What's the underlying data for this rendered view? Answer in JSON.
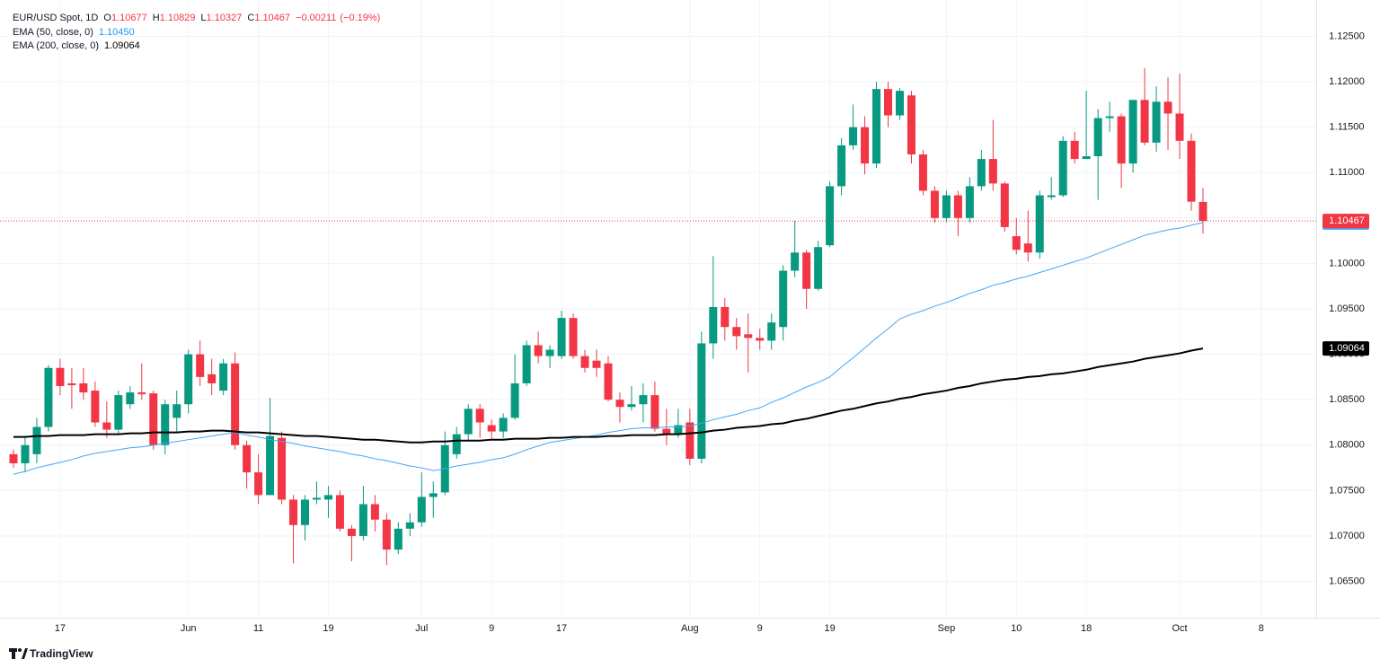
{
  "chart_data": {
    "type": "candlestick",
    "title": "EUR/USD Spot, 1D",
    "ohlc_letters": [
      "O",
      "H",
      "L",
      "C"
    ],
    "change": {
      "value": -0.00211,
      "label": "−0.00211"
    },
    "change_pct": {
      "value": -0.19,
      "label": "(−0.19%)"
    },
    "branding": "TradingView",
    "up_color": "#089981",
    "down_color": "#f23645",
    "grid": true,
    "ylim": [
      1.061,
      1.129
    ],
    "yticks": [
      {
        "value": 1.065,
        "label": "1.06500"
      },
      {
        "value": 1.07,
        "label": "1.07000"
      },
      {
        "value": 1.075,
        "label": "1.07500"
      },
      {
        "value": 1.08,
        "label": "1.08000"
      },
      {
        "value": 1.085,
        "label": "1.08500"
      },
      {
        "value": 1.09,
        "label": "1.09000"
      },
      {
        "value": 1.095,
        "label": "1.09500"
      },
      {
        "value": 1.1,
        "label": "1.10000"
      },
      {
        "value": 1.105,
        "label": "1.10500"
      },
      {
        "value": 1.11,
        "label": "1.11000"
      },
      {
        "value": 1.115,
        "label": "1.11500"
      },
      {
        "value": 1.12,
        "label": "1.12000"
      },
      {
        "value": 1.125,
        "label": "1.12500"
      }
    ],
    "categories": [
      null,
      null,
      null,
      null,
      "17",
      null,
      null,
      null,
      null,
      null,
      null,
      null,
      null,
      null,
      null,
      "Jun",
      null,
      null,
      null,
      null,
      null,
      "11",
      null,
      null,
      null,
      null,
      null,
      "19",
      null,
      null,
      null,
      null,
      null,
      null,
      null,
      "Jul",
      null,
      null,
      null,
      null,
      null,
      "9",
      null,
      null,
      null,
      null,
      null,
      "17",
      null,
      null,
      null,
      null,
      null,
      null,
      null,
      null,
      null,
      null,
      "Aug",
      null,
      null,
      null,
      null,
      null,
      "9",
      null,
      null,
      null,
      null,
      null,
      "19",
      null,
      null,
      null,
      null,
      null,
      null,
      null,
      null,
      null,
      "Sep",
      null,
      null,
      null,
      null,
      null,
      "10",
      null,
      null,
      null,
      null,
      null,
      "18",
      null,
      null,
      null,
      null,
      null,
      null,
      null,
      "Oct",
      null,
      null,
      null,
      null,
      null,
      null,
      "8"
    ],
    "series": [
      {
        "name": "EUR/USD Spot",
        "type": "candlestick",
        "open": [
          1.079,
          1.078,
          1.079,
          1.082,
          1.0885,
          1.0868,
          1.0868,
          1.086,
          1.0825,
          1.0817,
          1.0845,
          1.0858,
          1.0857,
          1.08,
          1.083,
          1.0845,
          1.09,
          1.0878,
          1.086,
          1.089,
          1.08,
          1.077,
          1.0745,
          1.0808,
          1.074,
          1.0712,
          1.074,
          1.074,
          1.0745,
          1.0708,
          1.07,
          1.0735,
          1.0718,
          1.0685,
          1.0708,
          1.0715,
          1.0743,
          1.0748,
          1.079,
          1.0812,
          1.084,
          1.0822,
          1.0815,
          1.083,
          1.0868,
          1.091,
          1.0898,
          1.0898,
          1.094,
          1.0898,
          1.0893,
          1.089,
          1.085,
          1.0842,
          1.0845,
          1.0855,
          1.0818,
          1.0812,
          1.0825,
          1.0785,
          1.0912,
          1.0952,
          1.093,
          1.0922,
          1.0918,
          1.0915,
          1.093,
          1.0992,
          1.1012,
          1.0972,
          1.102,
          1.1085,
          1.113,
          1.115,
          1.111,
          1.1192,
          1.1163,
          1.1185,
          1.112,
          1.108,
          1.105,
          1.1075,
          1.105,
          1.1085,
          1.1115,
          1.1088,
          1.103,
          1.1022,
          1.1012,
          1.1073,
          1.1075,
          1.1135,
          1.1115,
          1.1118,
          1.116,
          1.1162,
          1.111,
          1.118,
          1.1133,
          1.1178,
          1.1165,
          1.1135,
          1.10677,
          null,
          null,
          null,
          null,
          null
        ],
        "high": [
          1.0795,
          1.081,
          1.083,
          1.0888,
          1.0895,
          1.0885,
          1.0885,
          1.087,
          1.0848,
          1.086,
          1.0865,
          1.089,
          1.086,
          1.085,
          1.086,
          1.0905,
          1.0915,
          1.0895,
          1.0895,
          1.0902,
          1.0805,
          1.079,
          1.0852,
          1.0815,
          1.0745,
          1.0745,
          1.076,
          1.0755,
          1.075,
          1.0712,
          1.0755,
          1.0745,
          1.0725,
          1.0715,
          1.0725,
          1.077,
          1.076,
          1.0815,
          1.082,
          1.0845,
          1.0845,
          1.0828,
          1.0835,
          1.09,
          1.0915,
          1.0925,
          1.091,
          1.0948,
          1.0945,
          1.0905,
          1.0905,
          1.0898,
          1.0858,
          1.0865,
          1.0868,
          1.087,
          1.084,
          1.084,
          1.084,
          1.0925,
          1.1008,
          1.0962,
          1.094,
          1.0945,
          1.0928,
          1.0945,
          1.0998,
          1.1047,
          1.1015,
          1.1025,
          1.109,
          1.1138,
          1.1175,
          1.1162,
          1.12,
          1.12,
          1.1193,
          1.119,
          1.1125,
          1.1085,
          1.108,
          1.108,
          1.1095,
          1.1125,
          1.1158,
          1.109,
          1.105,
          1.1058,
          1.108,
          1.1095,
          1.114,
          1.1145,
          1.119,
          1.117,
          1.1178,
          1.1165,
          1.118,
          1.1215,
          1.1195,
          1.1205,
          1.1209,
          1.1143,
          1.10829,
          null,
          null,
          null,
          null,
          null
        ],
        "low": [
          1.0775,
          1.077,
          1.078,
          1.0815,
          1.0855,
          1.084,
          1.085,
          1.082,
          1.0808,
          1.0812,
          1.084,
          1.085,
          1.0795,
          1.079,
          1.0815,
          1.0835,
          1.0865,
          1.0855,
          1.0855,
          1.0795,
          1.0752,
          1.0735,
          1.0745,
          1.0735,
          1.067,
          1.0695,
          1.0735,
          1.072,
          1.0705,
          1.0672,
          1.0695,
          1.0705,
          1.0668,
          1.068,
          1.07,
          1.071,
          1.072,
          1.0745,
          1.0785,
          1.0805,
          1.0808,
          1.0805,
          1.0808,
          1.0828,
          1.0865,
          1.089,
          1.0885,
          1.0895,
          1.0895,
          1.088,
          1.0875,
          1.0848,
          1.0825,
          1.0838,
          1.0825,
          1.0815,
          1.08,
          1.0808,
          1.0778,
          1.078,
          1.0895,
          1.0915,
          1.0905,
          1.088,
          1.0905,
          1.0905,
          1.0915,
          1.0985,
          1.095,
          1.097,
          1.1018,
          1.1075,
          1.1125,
          1.1098,
          1.1105,
          1.115,
          1.1158,
          1.111,
          1.1075,
          1.1045,
          1.1045,
          1.103,
          1.1045,
          1.108,
          1.108,
          1.1035,
          1.101,
          1.1002,
          1.1005,
          1.107,
          1.1073,
          1.111,
          1.1115,
          1.107,
          1.1145,
          1.1083,
          1.11,
          1.113,
          1.1123,
          1.1125,
          1.1115,
          1.1058,
          1.10327,
          null,
          null,
          null,
          null,
          null
        ],
        "close": [
          1.078,
          1.08,
          1.082,
          1.0885,
          1.0865,
          1.0866,
          1.0858,
          1.0825,
          1.0817,
          1.0855,
          1.0858,
          1.0856,
          1.08,
          1.0845,
          1.0845,
          1.09,
          1.0875,
          1.0868,
          1.089,
          1.08,
          1.077,
          1.0745,
          1.081,
          1.074,
          1.0712,
          1.074,
          1.0742,
          1.0745,
          1.0708,
          1.07,
          1.0735,
          1.0718,
          1.0685,
          1.0708,
          1.0715,
          1.0743,
          1.0747,
          1.08,
          1.0812,
          1.084,
          1.0825,
          1.0815,
          1.083,
          1.0868,
          1.091,
          1.0898,
          1.0905,
          1.094,
          1.0898,
          1.0885,
          1.0885,
          1.085,
          1.0842,
          1.0845,
          1.0855,
          1.0818,
          1.0812,
          1.0822,
          1.0785,
          1.0912,
          1.0952,
          1.093,
          1.092,
          1.0918,
          1.0915,
          1.0935,
          1.0992,
          1.1012,
          1.0972,
          1.1018,
          1.1085,
          1.113,
          1.115,
          1.111,
          1.1192,
          1.1163,
          1.119,
          1.112,
          1.108,
          1.105,
          1.1075,
          1.105,
          1.1085,
          1.1115,
          1.1088,
          1.104,
          1.1015,
          1.1012,
          1.1075,
          1.1075,
          1.1135,
          1.1115,
          1.1118,
          1.116,
          1.1162,
          1.111,
          1.118,
          1.1133,
          1.1178,
          1.1165,
          1.1135,
          1.1068,
          1.10467,
          null,
          null,
          null,
          null,
          null
        ]
      },
      {
        "name": "EMA (50, close, 0)",
        "type": "line",
        "color": "#42a5f5",
        "last_label": "1.10450",
        "values": [
          1.0768,
          1.0771,
          1.0775,
          1.0778,
          1.0781,
          1.0784,
          1.0788,
          1.0791,
          1.0793,
          1.0795,
          1.0797,
          1.0798,
          1.08,
          1.0802,
          1.0804,
          1.0806,
          1.0808,
          1.081,
          1.0812,
          1.0814,
          1.0811,
          1.0809,
          1.0806,
          1.0804,
          1.0802,
          1.0799,
          1.0797,
          1.0795,
          1.0793,
          1.079,
          1.0788,
          1.0785,
          1.0783,
          1.078,
          1.0777,
          1.0775,
          1.0772,
          1.0774,
          1.0777,
          1.0779,
          1.0781,
          1.0784,
          1.0786,
          1.079,
          1.0795,
          1.0799,
          1.0803,
          1.0805,
          1.0807,
          1.0809,
          1.0811,
          1.0814,
          1.0816,
          1.0818,
          1.0819,
          1.0819,
          1.082,
          1.082,
          1.0821,
          1.0824,
          1.0828,
          1.0831,
          1.0834,
          1.0838,
          1.0841,
          1.0847,
          1.0852,
          1.0858,
          1.0864,
          1.0869,
          1.0875,
          1.0886,
          1.0896,
          1.0907,
          1.0918,
          1.0928,
          1.0939,
          1.0944,
          1.0948,
          1.0953,
          1.0957,
          1.0962,
          1.0967,
          1.0971,
          1.0976,
          1.0979,
          1.0983,
          1.0986,
          1.099,
          1.0994,
          1.0998,
          1.1002,
          1.1006,
          1.1011,
          1.1016,
          1.1021,
          1.1026,
          1.1031,
          1.1034,
          1.1037,
          1.1039,
          1.1042,
          1.1045,
          null,
          null,
          null,
          null,
          null
        ]
      },
      {
        "name": "EMA (200, close, 0)",
        "type": "line",
        "color": "#000000",
        "values": [
          1.0809,
          1.0809,
          1.081,
          1.081,
          1.0811,
          1.0811,
          1.0811,
          1.0812,
          1.0812,
          1.0812,
          1.0813,
          1.0813,
          1.0814,
          1.0814,
          1.0814,
          1.0815,
          1.0815,
          1.0816,
          1.0816,
          1.0815,
          1.0814,
          1.0814,
          1.0813,
          1.0812,
          1.0811,
          1.081,
          1.081,
          1.0809,
          1.0808,
          1.0807,
          1.0806,
          1.0806,
          1.0805,
          1.0804,
          1.0803,
          1.0803,
          1.0804,
          1.0804,
          1.0805,
          1.0805,
          1.0805,
          1.0806,
          1.0806,
          1.0807,
          1.0807,
          1.0807,
          1.0808,
          1.0808,
          1.0809,
          1.0809,
          1.0809,
          1.081,
          1.081,
          1.0811,
          1.0811,
          1.0811,
          1.0812,
          1.0812,
          1.0813,
          1.0814,
          1.0816,
          1.0817,
          1.0819,
          1.082,
          1.0821,
          1.0823,
          1.0824,
          1.0827,
          1.0829,
          1.0832,
          1.0835,
          1.0838,
          1.084,
          1.0843,
          1.0846,
          1.0848,
          1.0851,
          1.0853,
          1.0856,
          1.0858,
          1.086,
          1.0863,
          1.0865,
          1.0868,
          1.087,
          1.0872,
          1.0873,
          1.0875,
          1.0876,
          1.0878,
          1.0879,
          1.0881,
          1.0883,
          1.0886,
          1.0888,
          1.089,
          1.0892,
          1.0895,
          1.0897,
          1.0899,
          1.0901,
          1.0904,
          1.09064,
          null,
          null,
          null,
          null,
          null
        ]
      }
    ]
  }
}
